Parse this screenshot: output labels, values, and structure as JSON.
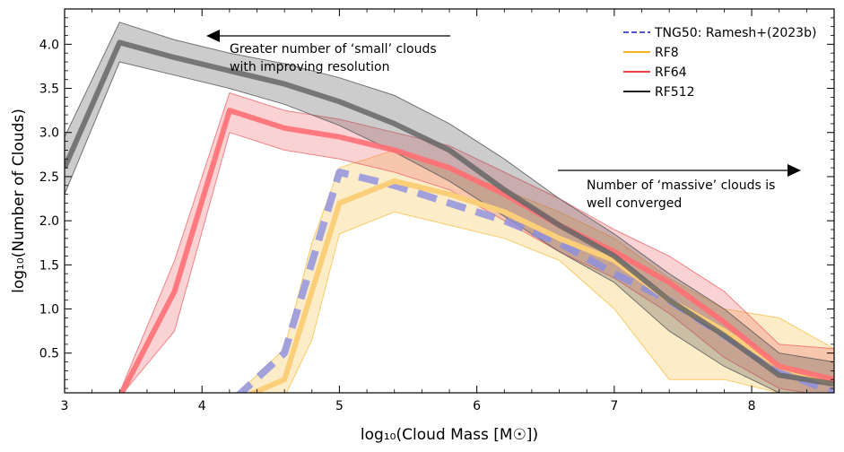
{
  "chart_data": {
    "type": "line",
    "xlabel": "log₁₀(Cloud Mass [M☉])",
    "ylabel": "log₁₀(Number of Clouds)",
    "xlim": [
      3.0,
      8.6
    ],
    "ylim": [
      0.05,
      4.4
    ],
    "xticks": [
      3,
      4,
      5,
      6,
      7,
      8
    ],
    "yticks": [
      0.5,
      1.0,
      1.5,
      2.0,
      2.5,
      3.0,
      3.5,
      4.0
    ],
    "xtick_labels": [
      "3",
      "4",
      "5",
      "6",
      "7",
      "8"
    ],
    "ytick_labels": [
      "0.5",
      "1.0",
      "1.5",
      "2.0",
      "2.5",
      "3.0",
      "3.5",
      "4.0"
    ],
    "grid": false,
    "legend_position": "top-right",
    "series": [
      {
        "name": "TNG50: Ramesh+(2023b)",
        "color": "#3b3bc8",
        "style": "dashed",
        "x": [
          4.25,
          4.6,
          5.0,
          5.4,
          5.8,
          6.2,
          6.6,
          7.0,
          7.4,
          7.8,
          8.2,
          8.6
        ],
        "y": [
          0.0,
          0.5,
          2.55,
          2.4,
          2.2,
          2.0,
          1.75,
          1.4,
          1.1,
          0.7,
          0.3,
          0.05
        ]
      },
      {
        "name": "RF8",
        "color": "#f5a800",
        "style": "solid",
        "x": [
          4.3,
          4.6,
          4.8,
          5.0,
          5.4,
          5.8,
          6.2,
          6.6,
          7.0,
          7.4,
          7.8,
          8.2,
          8.6
        ],
        "y": [
          0.0,
          0.2,
          1.2,
          2.2,
          2.45,
          2.3,
          2.1,
          1.8,
          1.55,
          1.1,
          0.75,
          0.35,
          0.15
        ],
        "band_upper": [
          0.1,
          0.55,
          1.75,
          2.6,
          2.8,
          2.6,
          2.35,
          2.1,
          1.8,
          1.35,
          1.0,
          0.9,
          0.55
        ],
        "band_lower": [
          0.0,
          0.0,
          0.65,
          1.85,
          2.1,
          1.95,
          1.8,
          1.55,
          1.0,
          0.2,
          0.2,
          0.05,
          0.0
        ]
      },
      {
        "name": "RF64",
        "color": "#e8272e",
        "style": "solid",
        "x": [
          3.4,
          3.8,
          4.2,
          4.6,
          5.0,
          5.4,
          5.8,
          6.2,
          6.6,
          7.0,
          7.4,
          7.8,
          8.2,
          8.6
        ],
        "y": [
          0.0,
          1.2,
          3.25,
          3.05,
          2.95,
          2.8,
          2.6,
          2.3,
          1.95,
          1.65,
          1.3,
          0.85,
          0.35,
          0.2
        ],
        "band_upper": [
          0.05,
          1.55,
          3.45,
          3.25,
          3.15,
          3.0,
          2.85,
          2.55,
          2.25,
          1.9,
          1.6,
          1.2,
          0.6,
          0.55
        ],
        "band_lower": [
          0.0,
          0.75,
          3.0,
          2.8,
          2.7,
          2.55,
          2.35,
          2.0,
          1.65,
          1.35,
          0.95,
          0.45,
          0.1,
          0.0
        ]
      },
      {
        "name": "RF512",
        "color": "#000000",
        "style": "solid",
        "x": [
          3.0,
          3.4,
          3.8,
          4.2,
          4.6,
          5.0,
          5.4,
          5.8,
          6.2,
          6.6,
          7.0,
          7.4,
          7.8,
          8.2,
          8.6
        ],
        "y": [
          2.6,
          4.02,
          3.85,
          3.7,
          3.55,
          3.35,
          3.1,
          2.8,
          2.35,
          1.95,
          1.6,
          1.1,
          0.7,
          0.25,
          0.15
        ],
        "band_upper": [
          2.95,
          4.25,
          4.05,
          3.9,
          3.78,
          3.62,
          3.42,
          3.1,
          2.7,
          2.25,
          1.85,
          1.4,
          1.0,
          0.5,
          0.4
        ],
        "band_lower": [
          2.3,
          3.8,
          3.65,
          3.5,
          3.32,
          3.08,
          2.78,
          2.45,
          2.05,
          1.65,
          1.3,
          0.75,
          0.35,
          0.05,
          0.0
        ]
      }
    ],
    "annotations": [
      {
        "text_lines": [
          "Greater number of ‘small’ clouds",
          "with improving resolution"
        ],
        "arrow": "left"
      },
      {
        "text_lines": [
          "Number of ‘massive’ clouds is",
          "well converged"
        ],
        "arrow": "right"
      }
    ]
  }
}
